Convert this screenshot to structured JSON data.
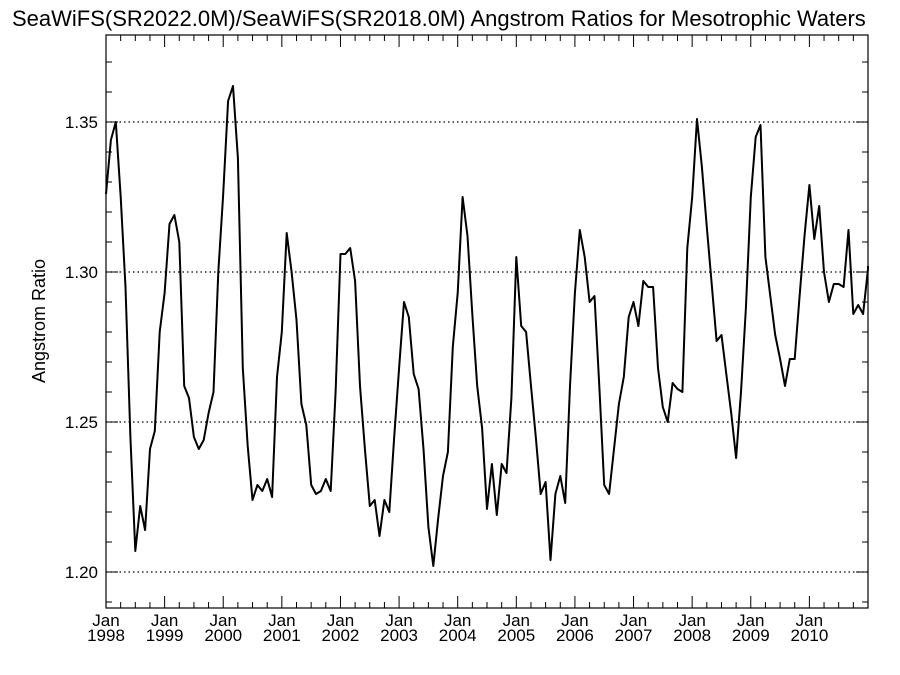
{
  "chart_data": {
    "type": "line",
    "title": "SeaWiFS(SR2022.0M)/SeaWiFS(SR2018.0M)  Angstrom Ratios for Mesotrophic Waters",
    "xlabel": "",
    "ylabel": "Angstrom Ratio",
    "ylim": [
      1.188,
      1.379
    ],
    "xlim": [
      "1998-01",
      "2010-12"
    ],
    "yticks": [
      "1.20",
      "1.25",
      "1.30",
      "1.35"
    ],
    "ytick_values": [
      1.2,
      1.25,
      1.3,
      1.35
    ],
    "xticks": [
      {
        "month": "Jan",
        "year": "1998",
        "date": "1998-01"
      },
      {
        "month": "Jan",
        "year": "1999",
        "date": "1999-01"
      },
      {
        "month": "Jan",
        "year": "2000",
        "date": "2000-01"
      },
      {
        "month": "Jan",
        "year": "2001",
        "date": "2001-01"
      },
      {
        "month": "Jan",
        "year": "2002",
        "date": "2002-01"
      },
      {
        "month": "Jan",
        "year": "2003",
        "date": "2003-01"
      },
      {
        "month": "Jan",
        "year": "2004",
        "date": "2004-01"
      },
      {
        "month": "Jan",
        "year": "2005",
        "date": "2005-01"
      },
      {
        "month": "Jan",
        "year": "2006",
        "date": "2006-01"
      },
      {
        "month": "Jan",
        "year": "2007",
        "date": "2007-01"
      },
      {
        "month": "Jan",
        "year": "2008",
        "date": "2008-01"
      },
      {
        "month": "Jan",
        "year": "2009",
        "date": "2009-01"
      },
      {
        "month": "Jan",
        "year": "2010",
        "date": "2010-01"
      }
    ],
    "grid": "horizontal dotted at y ticks",
    "series": [
      {
        "color": "#000000",
        "points": [
          [
            "1998-01",
            1.326
          ],
          [
            "1998-02",
            1.344
          ],
          [
            "1998-03",
            1.35
          ],
          [
            "1998-04",
            1.325
          ],
          [
            "1998-05",
            1.295
          ],
          [
            "1998-06",
            1.245
          ],
          [
            "1998-07",
            1.207
          ],
          [
            "1998-08",
            1.222
          ],
          [
            "1998-09",
            1.214
          ],
          [
            "1998-10",
            1.241
          ],
          [
            "1998-11",
            1.247
          ],
          [
            "1998-12",
            1.28
          ],
          [
            "1999-01",
            1.293
          ],
          [
            "1999-02",
            1.316
          ],
          [
            "1999-03",
            1.319
          ],
          [
            "1999-04",
            1.31
          ],
          [
            "1999-05",
            1.262
          ],
          [
            "1999-06",
            1.258
          ],
          [
            "1999-07",
            1.245
          ],
          [
            "1999-08",
            1.241
          ],
          [
            "1999-09",
            1.244
          ],
          [
            "1999-10",
            1.253
          ],
          [
            "1999-11",
            1.26
          ],
          [
            "1999-12",
            1.3
          ],
          [
            "2000-01",
            1.326
          ],
          [
            "2000-02",
            1.357
          ],
          [
            "2000-03",
            1.362
          ],
          [
            "2000-04",
            1.338
          ],
          [
            "2000-05",
            1.268
          ],
          [
            "2000-06",
            1.242
          ],
          [
            "2000-07",
            1.224
          ],
          [
            "2000-08",
            1.229
          ],
          [
            "2000-09",
            1.227
          ],
          [
            "2000-10",
            1.231
          ],
          [
            "2000-11",
            1.225
          ],
          [
            "2000-12",
            1.265
          ],
          [
            "2001-01",
            1.28
          ],
          [
            "2001-02",
            1.313
          ],
          [
            "2001-03",
            1.3
          ],
          [
            "2001-04",
            1.284
          ],
          [
            "2001-05",
            1.256
          ],
          [
            "2001-06",
            1.249
          ],
          [
            "2001-07",
            1.229
          ],
          [
            "2001-08",
            1.226
          ],
          [
            "2001-09",
            1.227
          ],
          [
            "2001-10",
            1.231
          ],
          [
            "2001-11",
            1.227
          ],
          [
            "2001-12",
            1.26
          ],
          [
            "2002-01",
            1.306
          ],
          [
            "2002-02",
            1.306
          ],
          [
            "2002-03",
            1.308
          ],
          [
            "2002-04",
            1.297
          ],
          [
            "2002-05",
            1.262
          ],
          [
            "2002-06",
            1.241
          ],
          [
            "2002-07",
            1.222
          ],
          [
            "2002-08",
            1.224
          ],
          [
            "2002-09",
            1.212
          ],
          [
            "2002-10",
            1.224
          ],
          [
            "2002-11",
            1.22
          ],
          [
            "2002-12",
            1.245
          ],
          [
            "2003-01",
            1.268
          ],
          [
            "2003-02",
            1.29
          ],
          [
            "2003-03",
            1.285
          ],
          [
            "2003-04",
            1.266
          ],
          [
            "2003-05",
            1.261
          ],
          [
            "2003-06",
            1.241
          ],
          [
            "2003-07",
            1.215
          ],
          [
            "2003-08",
            1.202
          ],
          [
            "2003-09",
            1.218
          ],
          [
            "2003-10",
            1.232
          ],
          [
            "2003-11",
            1.24
          ],
          [
            "2003-12",
            1.275
          ],
          [
            "2004-01",
            1.293
          ],
          [
            "2004-02",
            1.325
          ],
          [
            "2004-03",
            1.312
          ],
          [
            "2004-04",
            1.286
          ],
          [
            "2004-05",
            1.262
          ],
          [
            "2004-06",
            1.248
          ],
          [
            "2004-07",
            1.221
          ],
          [
            "2004-08",
            1.236
          ],
          [
            "2004-09",
            1.219
          ],
          [
            "2004-10",
            1.236
          ],
          [
            "2004-11",
            1.233
          ],
          [
            "2004-12",
            1.258
          ],
          [
            "2005-01",
            1.305
          ],
          [
            "2005-02",
            1.282
          ],
          [
            "2005-03",
            1.28
          ],
          [
            "2005-04",
            1.262
          ],
          [
            "2005-05",
            1.245
          ],
          [
            "2005-06",
            1.226
          ],
          [
            "2005-07",
            1.23
          ],
          [
            "2005-08",
            1.204
          ],
          [
            "2005-09",
            1.226
          ],
          [
            "2005-10",
            1.232
          ],
          [
            "2005-11",
            1.223
          ],
          [
            "2005-12",
            1.262
          ],
          [
            "2006-01",
            1.293
          ],
          [
            "2006-02",
            1.314
          ],
          [
            "2006-03",
            1.305
          ],
          [
            "2006-04",
            1.29
          ],
          [
            "2006-05",
            1.292
          ],
          [
            "2006-06",
            1.262
          ],
          [
            "2006-07",
            1.229
          ],
          [
            "2006-08",
            1.226
          ],
          [
            "2006-09",
            1.241
          ],
          [
            "2006-10",
            1.256
          ],
          [
            "2006-11",
            1.265
          ],
          [
            "2006-12",
            1.285
          ],
          [
            "2007-01",
            1.29
          ],
          [
            "2007-02",
            1.282
          ],
          [
            "2007-03",
            1.297
          ],
          [
            "2007-04",
            1.295
          ],
          [
            "2007-05",
            1.295
          ],
          [
            "2007-06",
            1.268
          ],
          [
            "2007-07",
            1.255
          ],
          [
            "2007-08",
            1.25
          ],
          [
            "2007-09",
            1.263
          ],
          [
            "2007-10",
            1.261
          ],
          [
            "2007-11",
            1.26
          ],
          [
            "2007-12",
            1.308
          ],
          [
            "2008-01",
            1.325
          ],
          [
            "2008-02",
            1.351
          ],
          [
            "2008-03",
            1.335
          ],
          [
            "2008-04",
            1.315
          ],
          [
            "2008-05",
            1.296
          ],
          [
            "2008-06",
            1.277
          ],
          [
            "2008-07",
            1.279
          ],
          [
            "2008-08",
            1.266
          ],
          [
            "2008-09",
            1.253
          ],
          [
            "2008-10",
            1.238
          ],
          [
            "2008-11",
            1.26
          ],
          [
            "2008-12",
            1.288
          ],
          [
            "2009-01",
            1.325
          ],
          [
            "2009-02",
            1.345
          ],
          [
            "2009-03",
            1.349
          ],
          [
            "2009-04",
            1.305
          ],
          [
            "2009-05",
            1.292
          ],
          [
            "2009-06",
            1.279
          ],
          [
            "2009-07",
            1.271
          ],
          [
            "2009-08",
            1.262
          ],
          [
            "2009-09",
            1.271
          ],
          [
            "2009-10",
            1.271
          ],
          [
            "2009-11",
            1.292
          ],
          [
            "2009-12",
            1.312
          ],
          [
            "2010-01",
            1.329
          ],
          [
            "2010-02",
            1.311
          ],
          [
            "2010-03",
            1.322
          ],
          [
            "2010-04",
            1.3
          ],
          [
            "2010-05",
            1.29
          ],
          [
            "2010-06",
            1.296
          ],
          [
            "2010-07",
            1.296
          ],
          [
            "2010-08",
            1.295
          ],
          [
            "2010-09",
            1.314
          ],
          [
            "2010-10",
            1.286
          ],
          [
            "2010-11",
            1.289
          ],
          [
            "2010-12",
            1.286
          ],
          [
            "2011-01",
            1.301
          ],
          [
            "2011-02",
            1.302
          ]
        ]
      }
    ]
  }
}
